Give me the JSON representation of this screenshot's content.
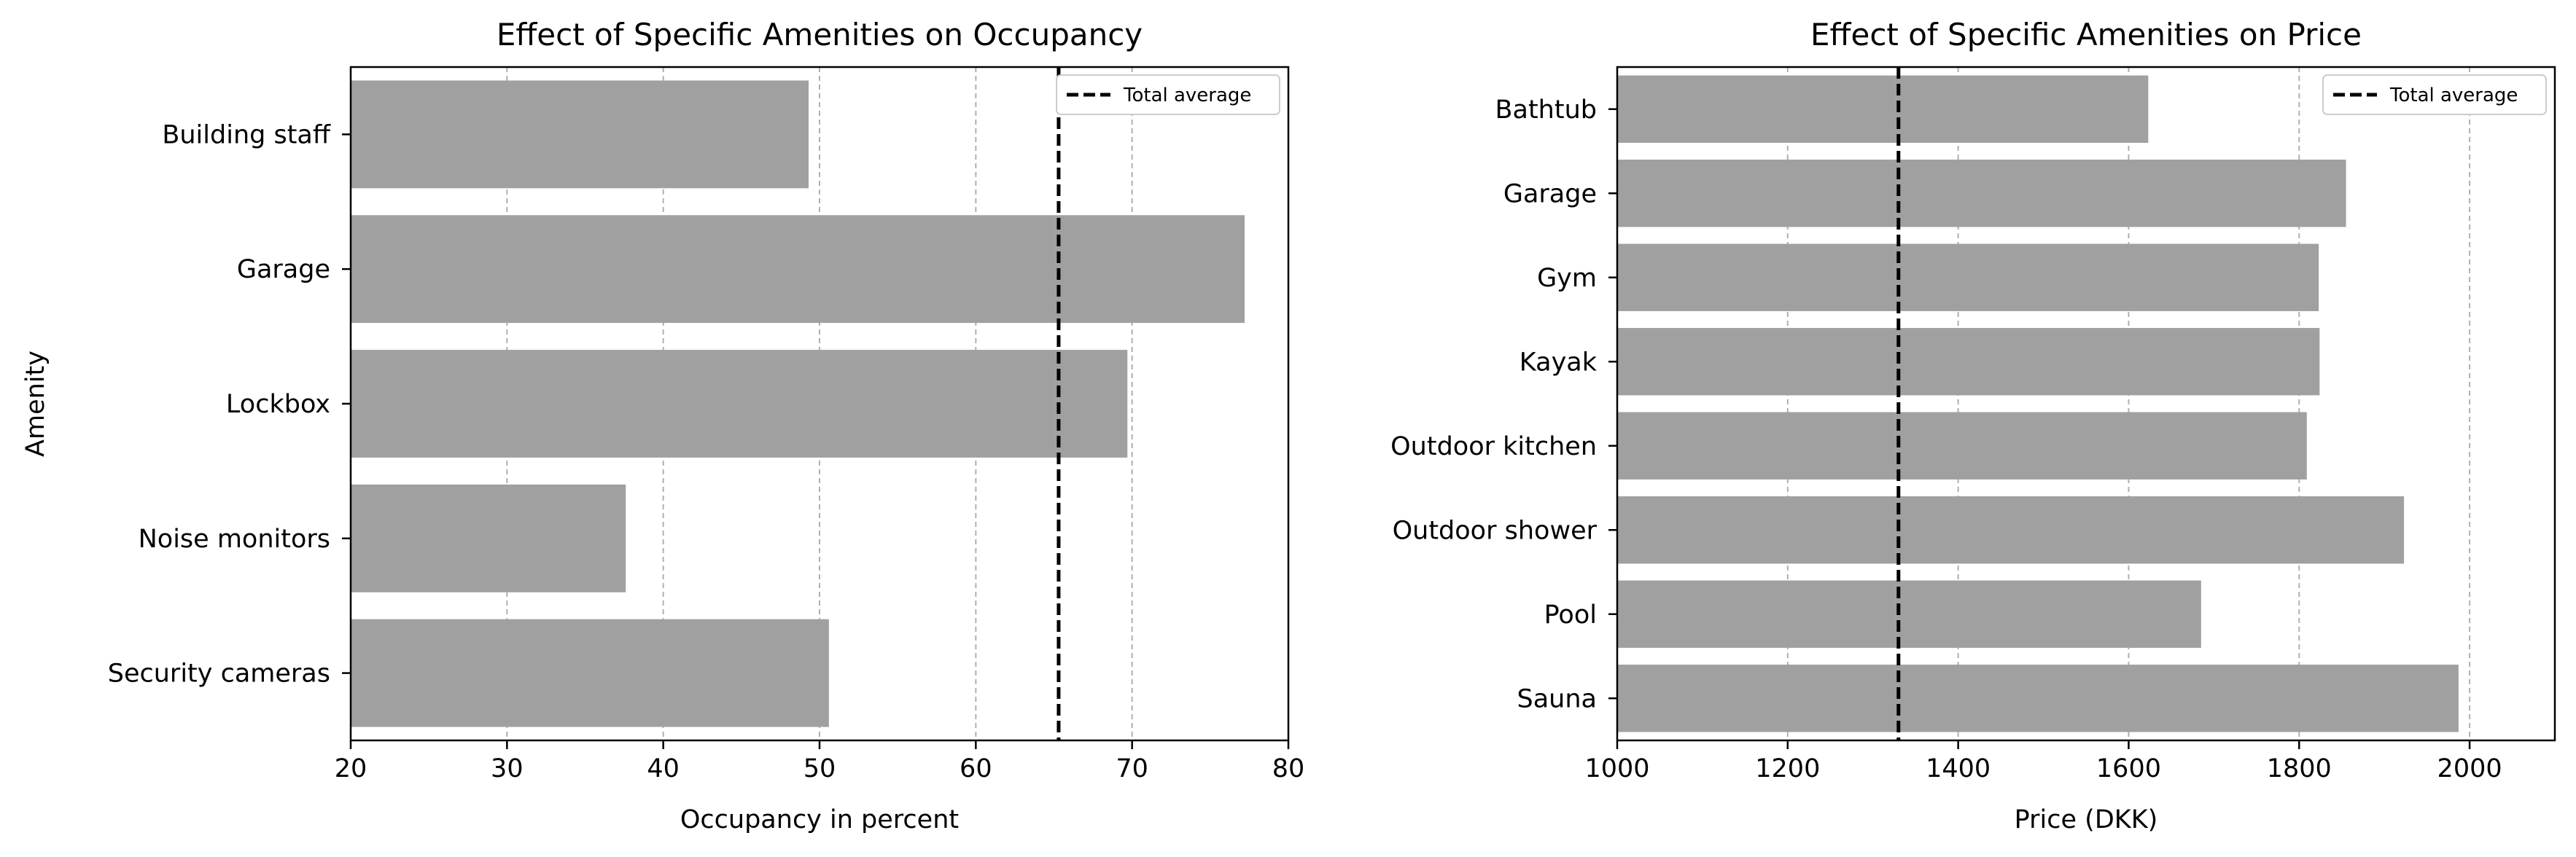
{
  "chart_data": [
    {
      "type": "bar",
      "orientation": "horizontal",
      "title": "Effect of Specific Amenities on Occupancy",
      "xlabel": "Occupancy in percent",
      "ylabel": "Amenity",
      "categories": [
        "Building staff",
        "Garage",
        "Lockbox",
        "Noise monitors",
        "Security cameras"
      ],
      "values": [
        49.3,
        77.2,
        69.7,
        37.6,
        50.6
      ],
      "xlim": [
        20,
        80
      ],
      "xticks": [
        20,
        30,
        40,
        50,
        60,
        70,
        80
      ],
      "reference_line": {
        "label": "Total average",
        "value": 65.3,
        "style": "dashed",
        "color": "#000000"
      },
      "bar_color": "#a0a0a0",
      "grid": "x",
      "legend_placement": "top-right"
    },
    {
      "type": "bar",
      "orientation": "horizontal",
      "title": "Effect of Specific Amenities on Price",
      "xlabel": "Price (DKK)",
      "ylabel": "",
      "categories": [
        "Bathtub",
        "Garage",
        "Gym",
        "Kayak",
        "Outdoor kitchen",
        "Outdoor shower",
        "Pool",
        "Sauna"
      ],
      "values": [
        1623,
        1855,
        1823,
        1824,
        1809,
        1923,
        1685,
        1987
      ],
      "xlim": [
        1000,
        2100
      ],
      "xticks": [
        1000,
        1200,
        1400,
        1600,
        1800,
        2000
      ],
      "reference_line": {
        "label": "Total average",
        "value": 1330,
        "style": "dashed",
        "color": "#000000"
      },
      "bar_color": "#a0a0a0",
      "grid": "x",
      "legend_placement": "top-right"
    }
  ]
}
